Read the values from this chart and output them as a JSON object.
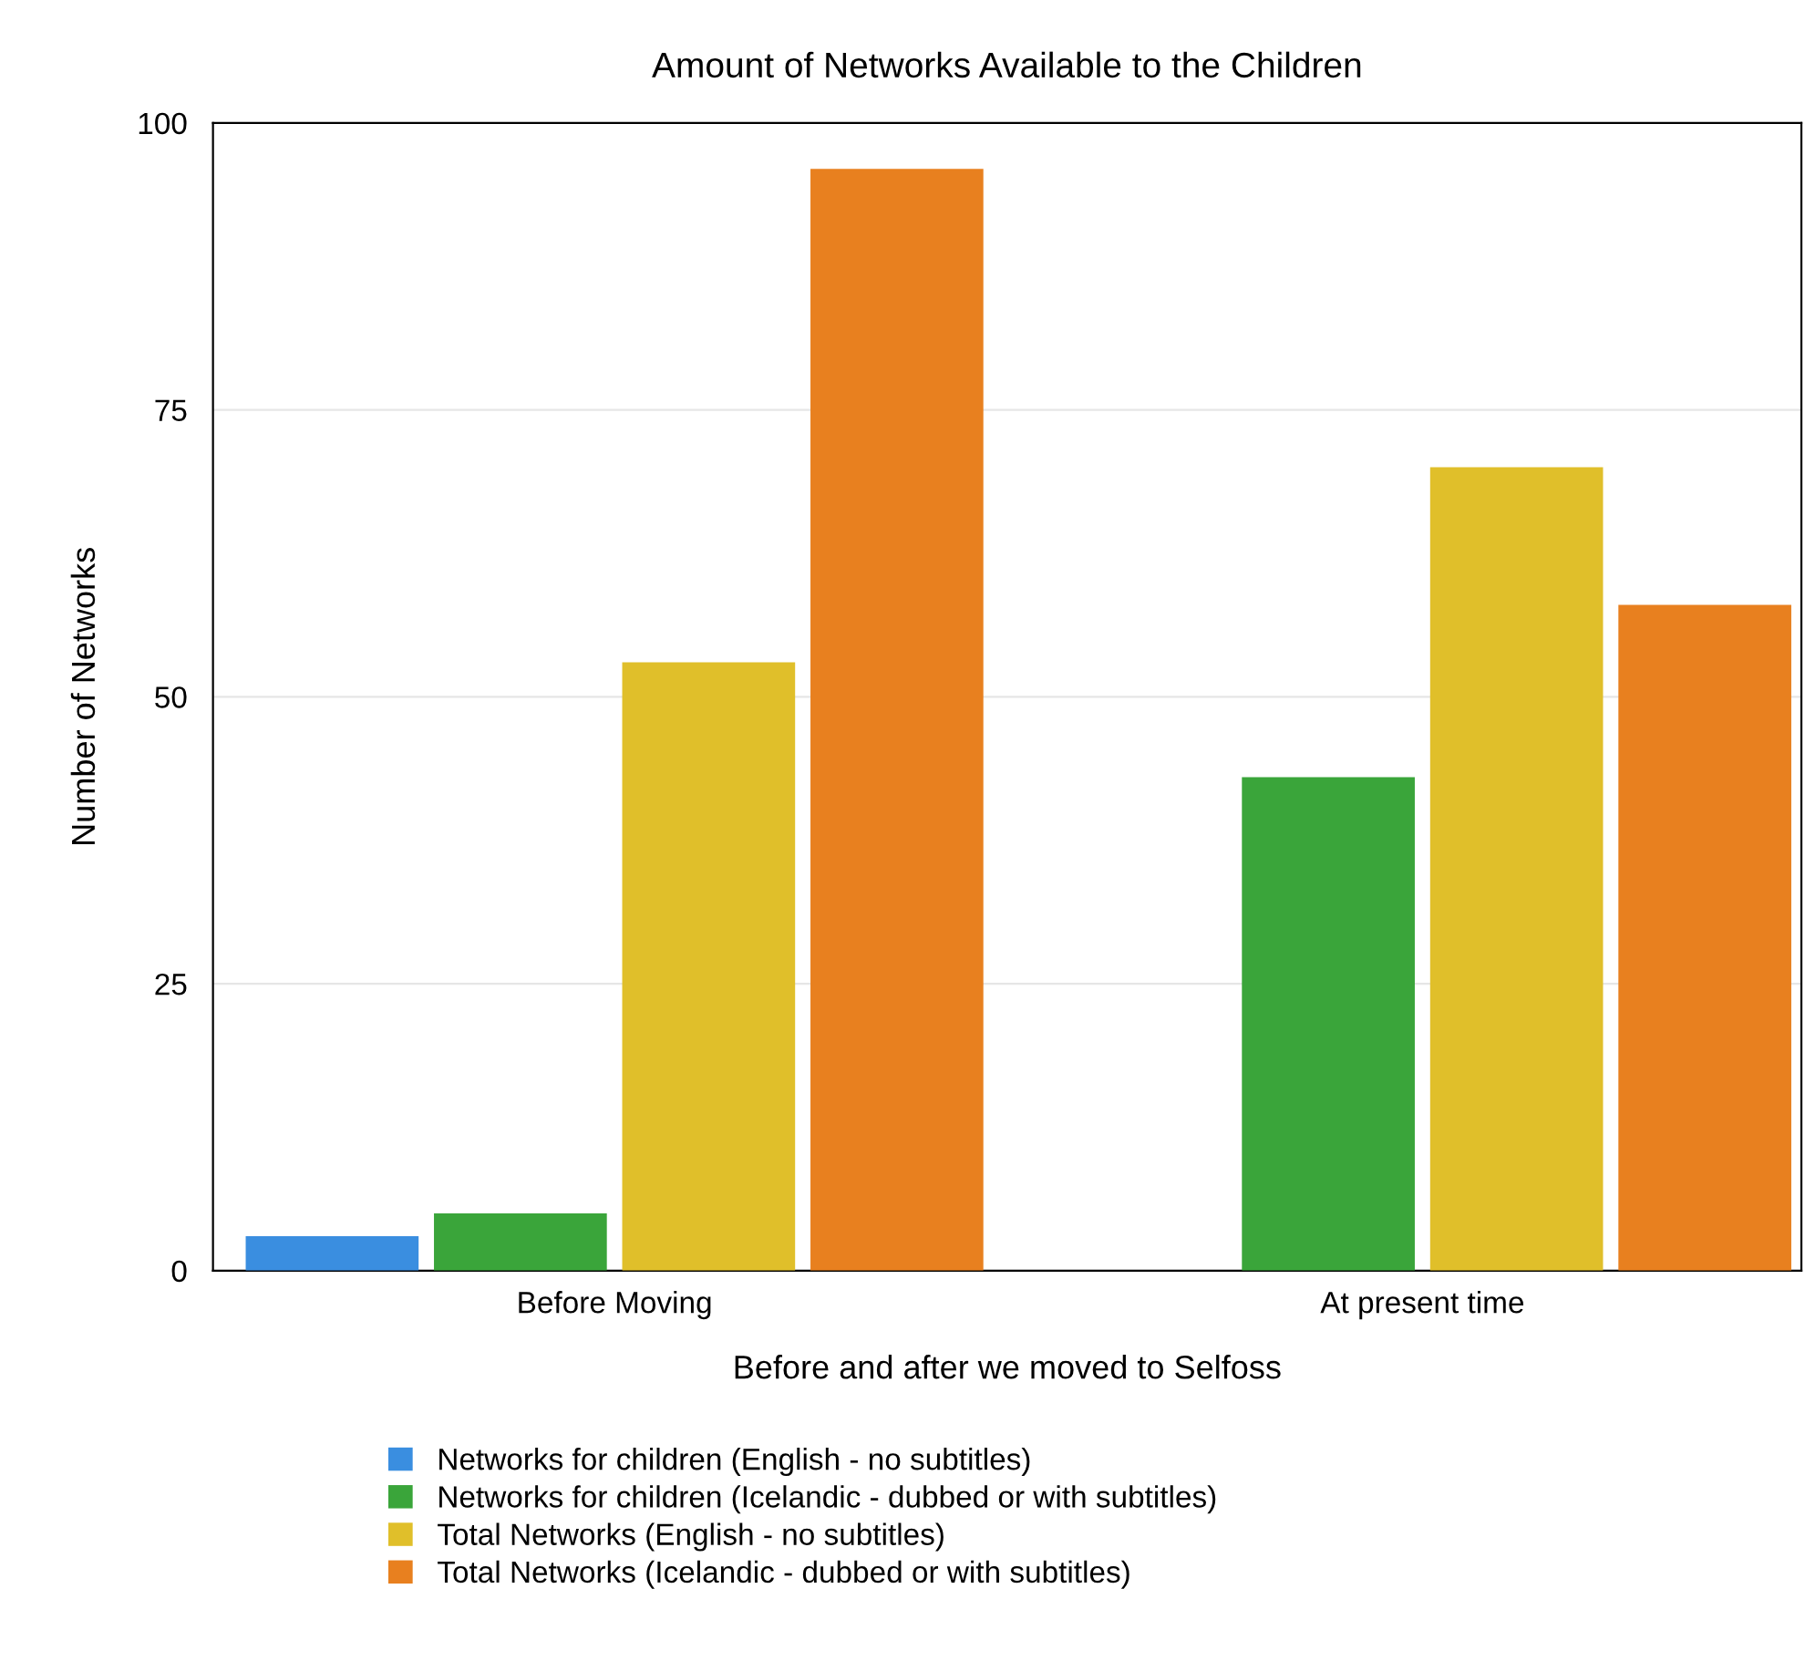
{
  "chart_data": {
    "type": "bar",
    "title": "Amount of Networks Available to the Children",
    "xlabel": "Before and after we moved to Selfoss",
    "ylabel": "Number of Networks",
    "categories": [
      "Before Moving",
      "At present time"
    ],
    "series": [
      {
        "name": "Networks for children (English - no subtitles)",
        "color": "#3a8ee0",
        "values": [
          3,
          0
        ]
      },
      {
        "name": "Networks for children (Icelandic - dubbed or with subtitles)",
        "color": "#3aa53a",
        "values": [
          5,
          43
        ]
      },
      {
        "name": "Total Networks (English - no subtitles)",
        "color": "#e0bf2a",
        "values": [
          53,
          70
        ]
      },
      {
        "name": "Total Networks (Icelandic - dubbed or with subtitles)",
        "color": "#e8801f",
        "values": [
          96,
          58
        ]
      }
    ],
    "ylim": [
      0,
      100
    ],
    "yticks": [
      0,
      25,
      50,
      75,
      100
    ],
    "grid": "y",
    "legend": "bottom"
  }
}
